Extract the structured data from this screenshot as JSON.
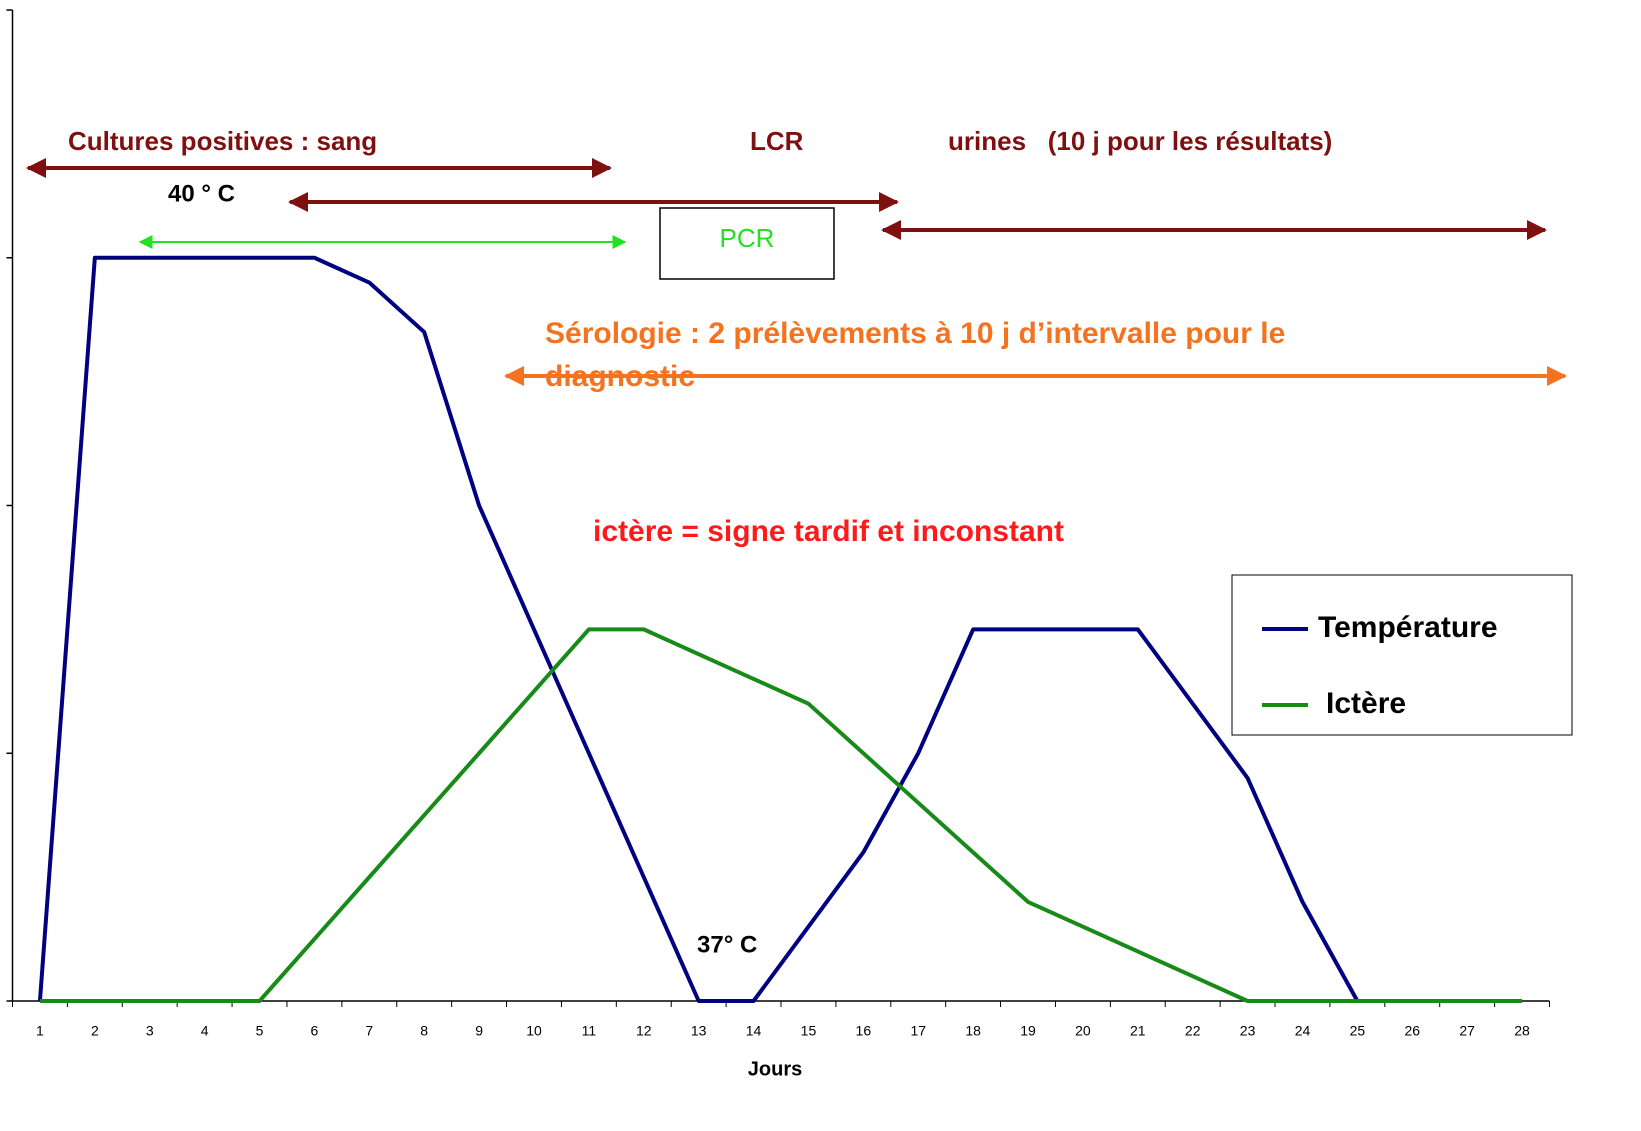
{
  "chart_data": {
    "type": "line",
    "x_label": "Jours",
    "categories": [
      "1",
      "2",
      "3",
      "4",
      "5",
      "6",
      "7",
      "8",
      "9",
      "10",
      "11",
      "12",
      "13",
      "14",
      "15",
      "16",
      "17",
      "18",
      "19",
      "20",
      "21",
      "22",
      "23",
      "24",
      "25",
      "26",
      "27",
      "28"
    ],
    "series": [
      {
        "name": "Température",
        "color": "#000080",
        "values": [
          0,
          3,
          3,
          3,
          3,
          3,
          2.9,
          2.7,
          2,
          1.5,
          1,
          0.5,
          0,
          0,
          0.3,
          0.6,
          1,
          1.5,
          1.5,
          1.5,
          1.5,
          1.2,
          0.9,
          0.4,
          0,
          0,
          0,
          0
        ]
      },
      {
        "name": "Ictère",
        "color": "#178a17",
        "values": [
          0,
          0,
          0,
          0,
          0,
          0.25,
          0.5,
          0.75,
          1,
          1.25,
          1.5,
          1.5,
          1.4,
          1.3,
          1.2,
          1,
          0.8,
          0.6,
          0.4,
          0.3,
          0.2,
          0.1,
          0,
          0,
          0,
          0,
          0,
          0
        ]
      }
    ],
    "ylim": [
      0,
      4
    ],
    "yticks": [
      0,
      1,
      2,
      3,
      4
    ],
    "annotations": {
      "cultures": "Cultures positives : sang",
      "lcr": "LCR",
      "urines": "urines   (10 j pour les résultats)",
      "t40": "40 ° C",
      "pcr": "PCR",
      "serologie1": "Sérologie : 2 prélèvements à 10 j d’intervalle pour le",
      "serologie2": "diagnostic",
      "ictere": "ictère = signe tardif et inconstant",
      "t37": "37° C"
    }
  }
}
